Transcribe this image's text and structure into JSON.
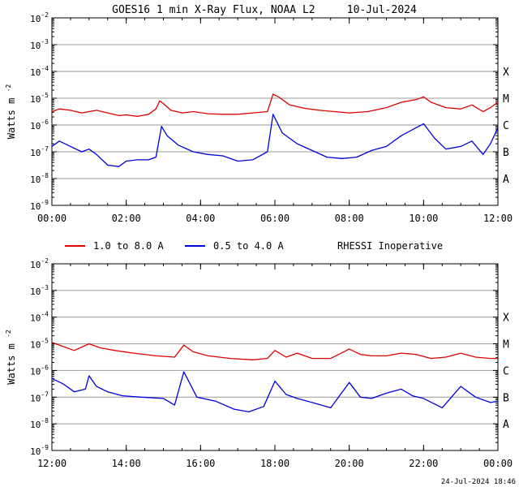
{
  "title": "GOES16 1 min X-Ray Flux, NOAA L2     10-Jul-2024",
  "footer_timestamp": "24-Jul-2024 18:46",
  "ylabel": "Watts m",
  "ylabel_sup": "-2",
  "flare_classes": [
    "X",
    "M",
    "C",
    "B",
    "A"
  ],
  "legend": [
    {
      "label": "1.0 to 8.0 A",
      "color": "#dd0000"
    },
    {
      "label": "0.5 to 4.0 A",
      "color": "#0000dd"
    }
  ],
  "status_note": "RHESSI Inoperative",
  "colors": {
    "long": "#dd0000",
    "short": "#0000dd",
    "grid": "#999999",
    "axis": "#000000"
  },
  "chart_data": [
    {
      "type": "line",
      "title": "GOES16 1 min X-Ray Flux, NOAA L2 10-Jul-2024 (00:00-12:00)",
      "xlabel": "",
      "ylabel": "Watts m-2",
      "xlim_hours": [
        0,
        12
      ],
      "ylim_log10": [
        -9,
        -2
      ],
      "x_ticks": [
        "00:00",
        "02:00",
        "04:00",
        "06:00",
        "08:00",
        "10:00",
        "12:00"
      ],
      "y_ticks": [
        "10-9",
        "10-8",
        "10-7",
        "10-6",
        "10-5",
        "10-4",
        "10-3",
        "10-2"
      ],
      "grid": "horizontal",
      "series": [
        {
          "name": "1.0 to 8.0 A",
          "x": [
            0.0,
            0.2,
            0.5,
            0.8,
            1.0,
            1.2,
            1.5,
            1.8,
            2.0,
            2.3,
            2.6,
            2.8,
            2.9,
            3.0,
            3.2,
            3.5,
            3.8,
            4.2,
            4.6,
            5.0,
            5.4,
            5.8,
            5.95,
            6.1,
            6.4,
            6.8,
            7.2,
            7.6,
            8.0,
            8.5,
            9.0,
            9.4,
            9.8,
            10.0,
            10.2,
            10.6,
            11.0,
            11.3,
            11.6,
            11.8,
            12.0
          ],
          "log10_flux": [
            -5.5,
            -5.4,
            -5.45,
            -5.55,
            -5.5,
            -5.45,
            -5.55,
            -5.65,
            -5.62,
            -5.68,
            -5.6,
            -5.4,
            -5.1,
            -5.2,
            -5.45,
            -5.55,
            -5.5,
            -5.58,
            -5.6,
            -5.6,
            -5.55,
            -5.5,
            -4.85,
            -4.95,
            -5.25,
            -5.38,
            -5.45,
            -5.5,
            -5.55,
            -5.5,
            -5.35,
            -5.15,
            -5.05,
            -4.95,
            -5.15,
            -5.35,
            -5.4,
            -5.25,
            -5.5,
            -5.35,
            -5.15
          ]
        },
        {
          "name": "0.5 to 4.0 A",
          "x": [
            0.0,
            0.2,
            0.5,
            0.8,
            1.0,
            1.2,
            1.5,
            1.8,
            2.0,
            2.3,
            2.6,
            2.8,
            2.95,
            3.1,
            3.4,
            3.8,
            4.2,
            4.6,
            5.0,
            5.4,
            5.8,
            5.95,
            6.2,
            6.6,
            7.0,
            7.4,
            7.8,
            8.2,
            8.6,
            9.0,
            9.4,
            9.8,
            10.0,
            10.3,
            10.6,
            11.0,
            11.3,
            11.6,
            11.8,
            12.0
          ],
          "log10_flux": [
            -6.8,
            -6.6,
            -6.8,
            -7.0,
            -6.9,
            -7.1,
            -7.5,
            -7.55,
            -7.35,
            -7.3,
            -7.3,
            -7.2,
            -6.05,
            -6.4,
            -6.75,
            -7.0,
            -7.1,
            -7.15,
            -7.35,
            -7.3,
            -7.0,
            -5.6,
            -6.3,
            -6.7,
            -6.95,
            -7.2,
            -7.25,
            -7.2,
            -6.95,
            -6.8,
            -6.4,
            -6.1,
            -5.95,
            -6.5,
            -6.9,
            -6.8,
            -6.6,
            -7.1,
            -6.7,
            -6.1
          ]
        }
      ]
    },
    {
      "type": "line",
      "title": "GOES16 1 min X-Ray Flux, NOAA L2 10-Jul-2024 (12:00-24:00)",
      "xlabel": "",
      "ylabel": "Watts m-2",
      "xlim_hours": [
        12,
        24
      ],
      "ylim_log10": [
        -9,
        -2
      ],
      "x_ticks": [
        "12:00",
        "14:00",
        "16:00",
        "18:00",
        "20:00",
        "22:00",
        "00:00"
      ],
      "y_ticks": [
        "10-9",
        "10-8",
        "10-7",
        "10-6",
        "10-5",
        "10-4",
        "10-3",
        "10-2"
      ],
      "grid": "horizontal",
      "series": [
        {
          "name": "1.0 to 8.0 A",
          "x": [
            12.0,
            12.3,
            12.6,
            13.0,
            13.3,
            13.7,
            14.2,
            14.8,
            15.3,
            15.55,
            15.8,
            16.2,
            16.8,
            17.4,
            17.8,
            18.0,
            18.3,
            18.6,
            19.0,
            19.5,
            20.0,
            20.3,
            20.6,
            21.0,
            21.4,
            21.8,
            22.2,
            22.6,
            23.0,
            23.4,
            23.8,
            24.0
          ],
          "log10_flux": [
            -4.95,
            -5.1,
            -5.25,
            -5.0,
            -5.15,
            -5.25,
            -5.35,
            -5.45,
            -5.5,
            -5.05,
            -5.3,
            -5.45,
            -5.55,
            -5.6,
            -5.55,
            -5.25,
            -5.5,
            -5.35,
            -5.55,
            -5.55,
            -5.2,
            -5.4,
            -5.45,
            -5.45,
            -5.35,
            -5.4,
            -5.55,
            -5.5,
            -5.35,
            -5.5,
            -5.55,
            -5.55
          ]
        },
        {
          "name": "0.5 to 4.0 A",
          "x": [
            12.0,
            12.3,
            12.6,
            12.9,
            13.0,
            13.2,
            13.5,
            13.9,
            14.4,
            15.0,
            15.3,
            15.55,
            15.9,
            16.4,
            16.9,
            17.3,
            17.7,
            18.0,
            18.3,
            18.6,
            19.0,
            19.5,
            20.0,
            20.3,
            20.6,
            21.0,
            21.4,
            21.7,
            22.0,
            22.5,
            23.0,
            23.4,
            23.8,
            24.0
          ],
          "log10_flux": [
            -6.3,
            -6.5,
            -6.8,
            -6.7,
            -6.2,
            -6.6,
            -6.8,
            -6.95,
            -7.0,
            -7.05,
            -7.3,
            -6.05,
            -7.0,
            -7.15,
            -7.45,
            -7.55,
            -7.35,
            -6.4,
            -6.9,
            -7.05,
            -7.2,
            -7.4,
            -6.45,
            -7.0,
            -7.05,
            -6.85,
            -6.7,
            -6.95,
            -7.05,
            -7.4,
            -6.6,
            -7.0,
            -7.2,
            -7.15
          ]
        }
      ]
    }
  ]
}
